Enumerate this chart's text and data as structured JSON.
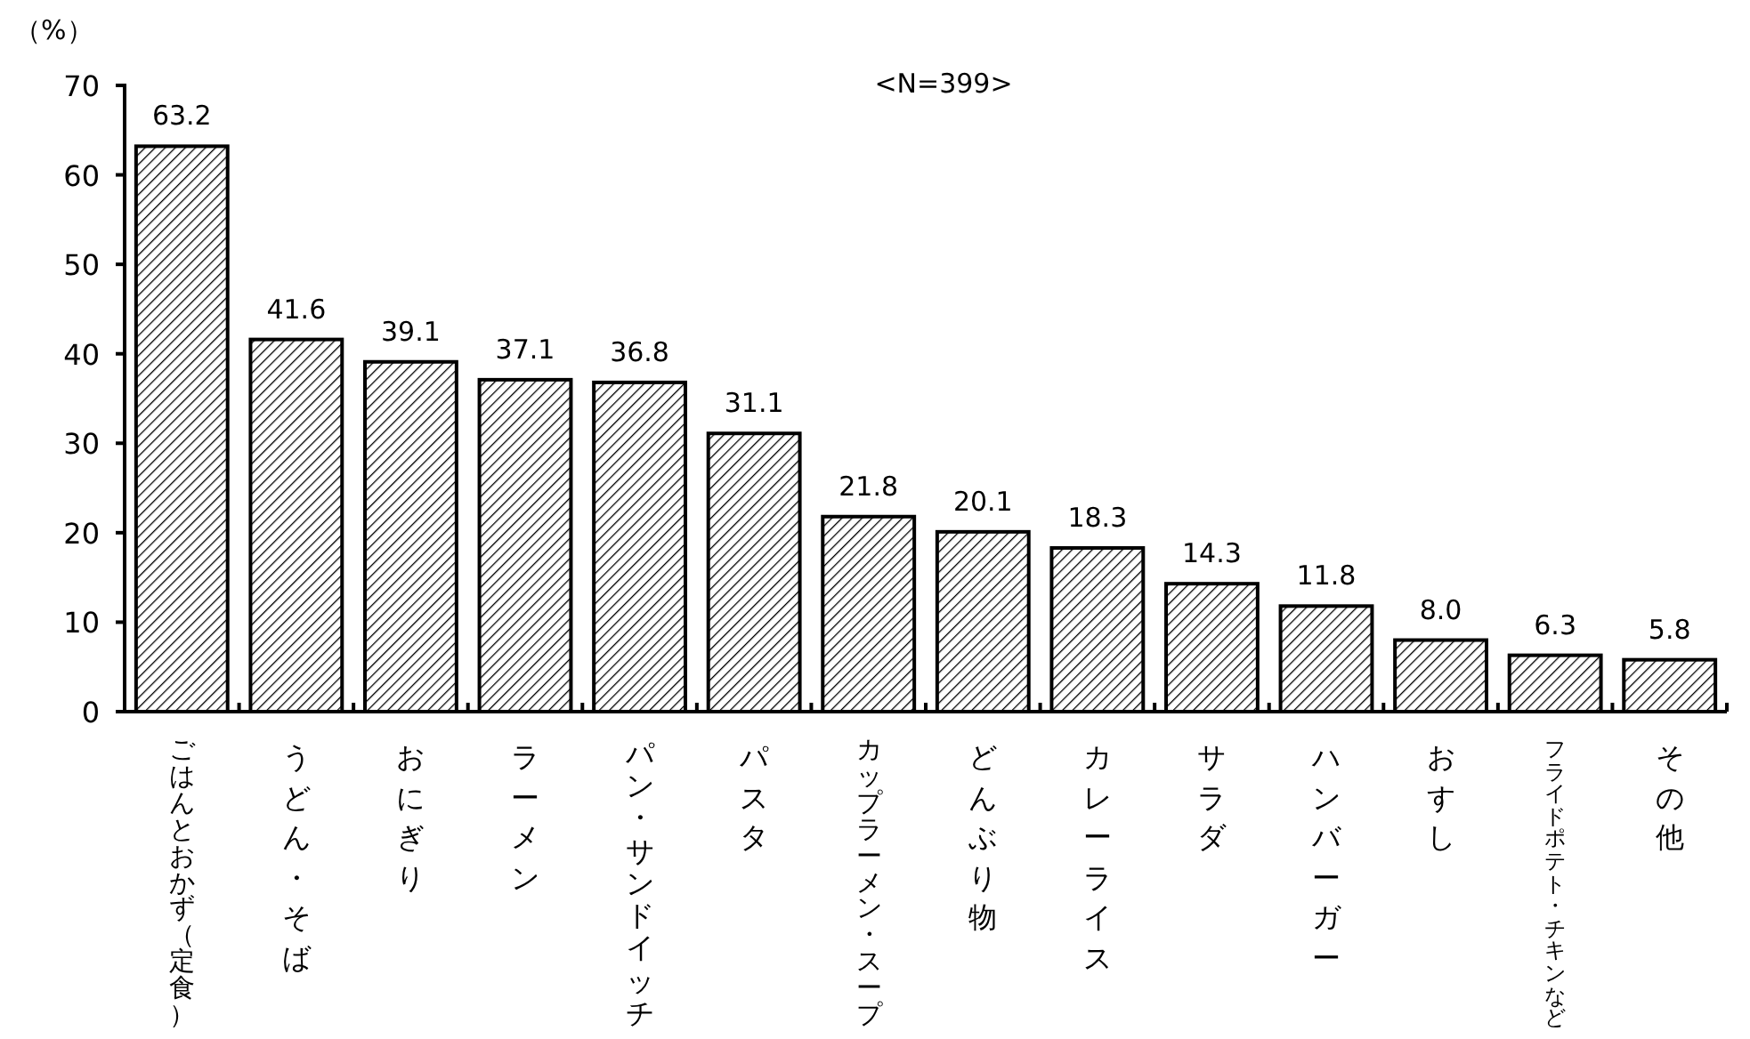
{
  "chart_data": {
    "type": "bar",
    "ylabel": "（%）",
    "annotations": [
      "<N=399>"
    ],
    "categories": [
      "ごはんとおかず（定食）",
      "うどん・そば",
      "おにぎり",
      "ラーメン",
      "パン・サンドイッチ",
      "パスタ",
      "カップラーメン・スープ",
      "どんぶり物",
      "カレーライス",
      "サラダ",
      "ハンバーガー",
      "おすし",
      "フライドポテト・チキンなど",
      "その他"
    ],
    "values": [
      63.2,
      41.6,
      39.1,
      37.1,
      36.8,
      31.1,
      21.8,
      20.1,
      18.3,
      14.3,
      11.8,
      8.0,
      6.3,
      5.8
    ],
    "value_labels": [
      "63.2",
      "41.6",
      "39.1",
      "37.1",
      "36.8",
      "31.1",
      "21.8",
      "20.1",
      "18.3",
      "14.3",
      "11.8",
      "8.0",
      "6.3",
      "5.8"
    ],
    "color": "#000000",
    "ylim": [
      0,
      70
    ],
    "yticks": [
      0,
      10,
      20,
      30,
      40,
      50,
      60,
      70
    ],
    "grid": false
  }
}
